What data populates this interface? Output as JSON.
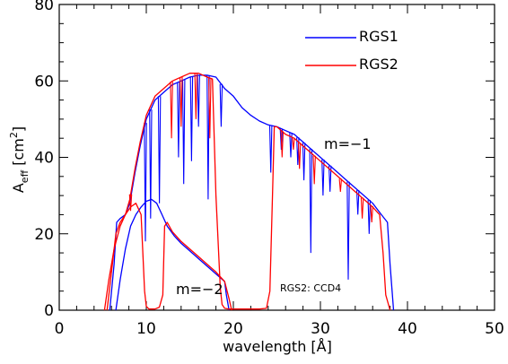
{
  "chart_data": {
    "type": "line",
    "xlabel": "wavelength [Å]",
    "ylabel": "A",
    "ylabel_sub": "eff",
    "ylabel_unit_open": " [cm",
    "ylabel_unit_sup": "2",
    "ylabel_unit_close": "]",
    "xlim": [
      0,
      50
    ],
    "ylim": [
      0,
      80
    ],
    "xticks": [
      0,
      10,
      20,
      30,
      40,
      50
    ],
    "yticks": [
      0,
      20,
      40,
      60,
      80
    ],
    "grid": false,
    "legend": "top-right",
    "annotations": [
      "m=−1",
      "m=−2",
      "RGS2: CCD4"
    ],
    "series": [
      {
        "name": "RGS1",
        "color": "#0000ff",
        "order_minus1": {
          "x": [
            5.8,
            6.3,
            6.6,
            7.0,
            7.6,
            8.1,
            8.7,
            9.3,
            10.0,
            11.0,
            12.0,
            13.0,
            14.0,
            15.0,
            16.0,
            17.0,
            18.0,
            19.0,
            20.0,
            21.0,
            22.0,
            23.0,
            24.0,
            25.0,
            26.0,
            27.0,
            28.0,
            29.0,
            30.0,
            31.0,
            32.0,
            33.0,
            34.0,
            35.0,
            36.0,
            37.0,
            37.7,
            38.0,
            38.4
          ],
          "y": [
            0,
            12,
            23,
            24,
            25,
            28,
            36,
            43,
            50,
            55,
            57,
            59,
            60,
            61,
            61.5,
            61.5,
            61,
            58,
            56,
            53,
            51,
            49.5,
            48.5,
            48,
            47,
            46,
            44,
            42,
            40,
            38,
            36,
            34,
            32,
            30,
            28,
            25,
            23,
            12,
            0
          ]
        },
        "order_minus2": {
          "x": [
            6.5,
            7.0,
            7.6,
            8.2,
            8.8,
            9.4,
            10.0,
            10.6,
            11.2,
            11.8,
            12.4,
            13.2,
            14.0,
            15.0,
            16.0,
            17.0,
            18.0,
            19.0,
            19.2,
            19.5
          ],
          "y": [
            0,
            8,
            16,
            22,
            25,
            27,
            28.5,
            29,
            28,
            25,
            22,
            19.5,
            17.5,
            15.5,
            13.5,
            11.5,
            9.5,
            7.5,
            4,
            0
          ]
        },
        "absorption_dips": [
          {
            "x": 9.9,
            "y": 18
          },
          {
            "x": 10.5,
            "y": 24
          },
          {
            "x": 11.5,
            "y": 28
          },
          {
            "x": 13.7,
            "y": 40
          },
          {
            "x": 14.3,
            "y": 33
          },
          {
            "x": 15.2,
            "y": 39
          },
          {
            "x": 16.0,
            "y": 48
          },
          {
            "x": 17.1,
            "y": 29
          },
          {
            "x": 18.6,
            "y": 48
          },
          {
            "x": 24.3,
            "y": 36
          },
          {
            "x": 25.5,
            "y": 42
          },
          {
            "x": 26.6,
            "y": 40
          },
          {
            "x": 27.4,
            "y": 38
          },
          {
            "x": 28.1,
            "y": 34
          },
          {
            "x": 28.9,
            "y": 15
          },
          {
            "x": 30.3,
            "y": 30
          },
          {
            "x": 31.1,
            "y": 31
          },
          {
            "x": 33.2,
            "y": 8
          },
          {
            "x": 34.3,
            "y": 25
          },
          {
            "x": 35.6,
            "y": 20
          }
        ]
      },
      {
        "name": "RGS2",
        "color": "#ff0000",
        "order_minus1": {
          "x": [
            5.5,
            6.0,
            6.5,
            7.0,
            7.6,
            8.1,
            8.7,
            9.3,
            10.0,
            11.0,
            12.0,
            13.0,
            14.0,
            15.0,
            16.0,
            17.0,
            17.6,
            18.0,
            18.5,
            18.7,
            19.0,
            19.5,
            20.0,
            20.4,
            21.0,
            22.0,
            23.0,
            23.8,
            24.2,
            24.5,
            24.7,
            25.0,
            26.0,
            27.0,
            28.0,
            29.0,
            30.0,
            31.0,
            32.0,
            33.0,
            34.0,
            35.0,
            36.0,
            36.8,
            37.2,
            37.5,
            38.0
          ],
          "y": [
            0,
            10,
            20,
            23,
            25,
            29,
            37,
            44,
            51,
            56,
            58,
            60,
            61,
            62,
            62,
            61,
            60.5,
            30,
            6,
            1.5,
            0.5,
            0.3,
            0.3,
            0.3,
            0.3,
            0.3,
            0.3,
            0.5,
            5,
            30,
            48,
            48,
            46,
            45,
            43,
            41,
            39,
            37,
            35,
            33,
            31,
            29,
            27,
            25,
            15,
            4,
            0
          ]
        },
        "order_minus2": {
          "x": [
            5.2,
            5.7,
            6.3,
            7.0,
            7.6,
            8.2,
            8.8,
            9.4,
            9.8,
            10.0,
            10.3,
            10.6,
            11.0,
            11.5,
            11.9,
            12.1,
            12.4,
            13.0,
            14.0,
            15.0,
            16.0,
            17.0,
            18.0,
            19.0,
            19.5,
            19.8
          ],
          "y": [
            0,
            8,
            16,
            22,
            25,
            27,
            28,
            25,
            5,
            1,
            0.3,
            0.3,
            0.3,
            0.8,
            4,
            22,
            23,
            20.5,
            18,
            16,
            14,
            12,
            10,
            7.5,
            3,
            0
          ]
        },
        "absorption_dips": [
          {
            "x": 8.2,
            "y": 26
          },
          {
            "x": 12.9,
            "y": 45
          },
          {
            "x": 14.0,
            "y": 48
          },
          {
            "x": 15.7,
            "y": 50
          },
          {
            "x": 17.3,
            "y": 45
          },
          {
            "x": 25.6,
            "y": 40
          },
          {
            "x": 26.9,
            "y": 42
          },
          {
            "x": 27.6,
            "y": 37
          },
          {
            "x": 29.3,
            "y": 33
          },
          {
            "x": 32.3,
            "y": 31
          },
          {
            "x": 34.8,
            "y": 24
          },
          {
            "x": 35.9,
            "y": 23
          }
        ]
      }
    ],
    "legend_entries": [
      "RGS1",
      "RGS2"
    ]
  }
}
